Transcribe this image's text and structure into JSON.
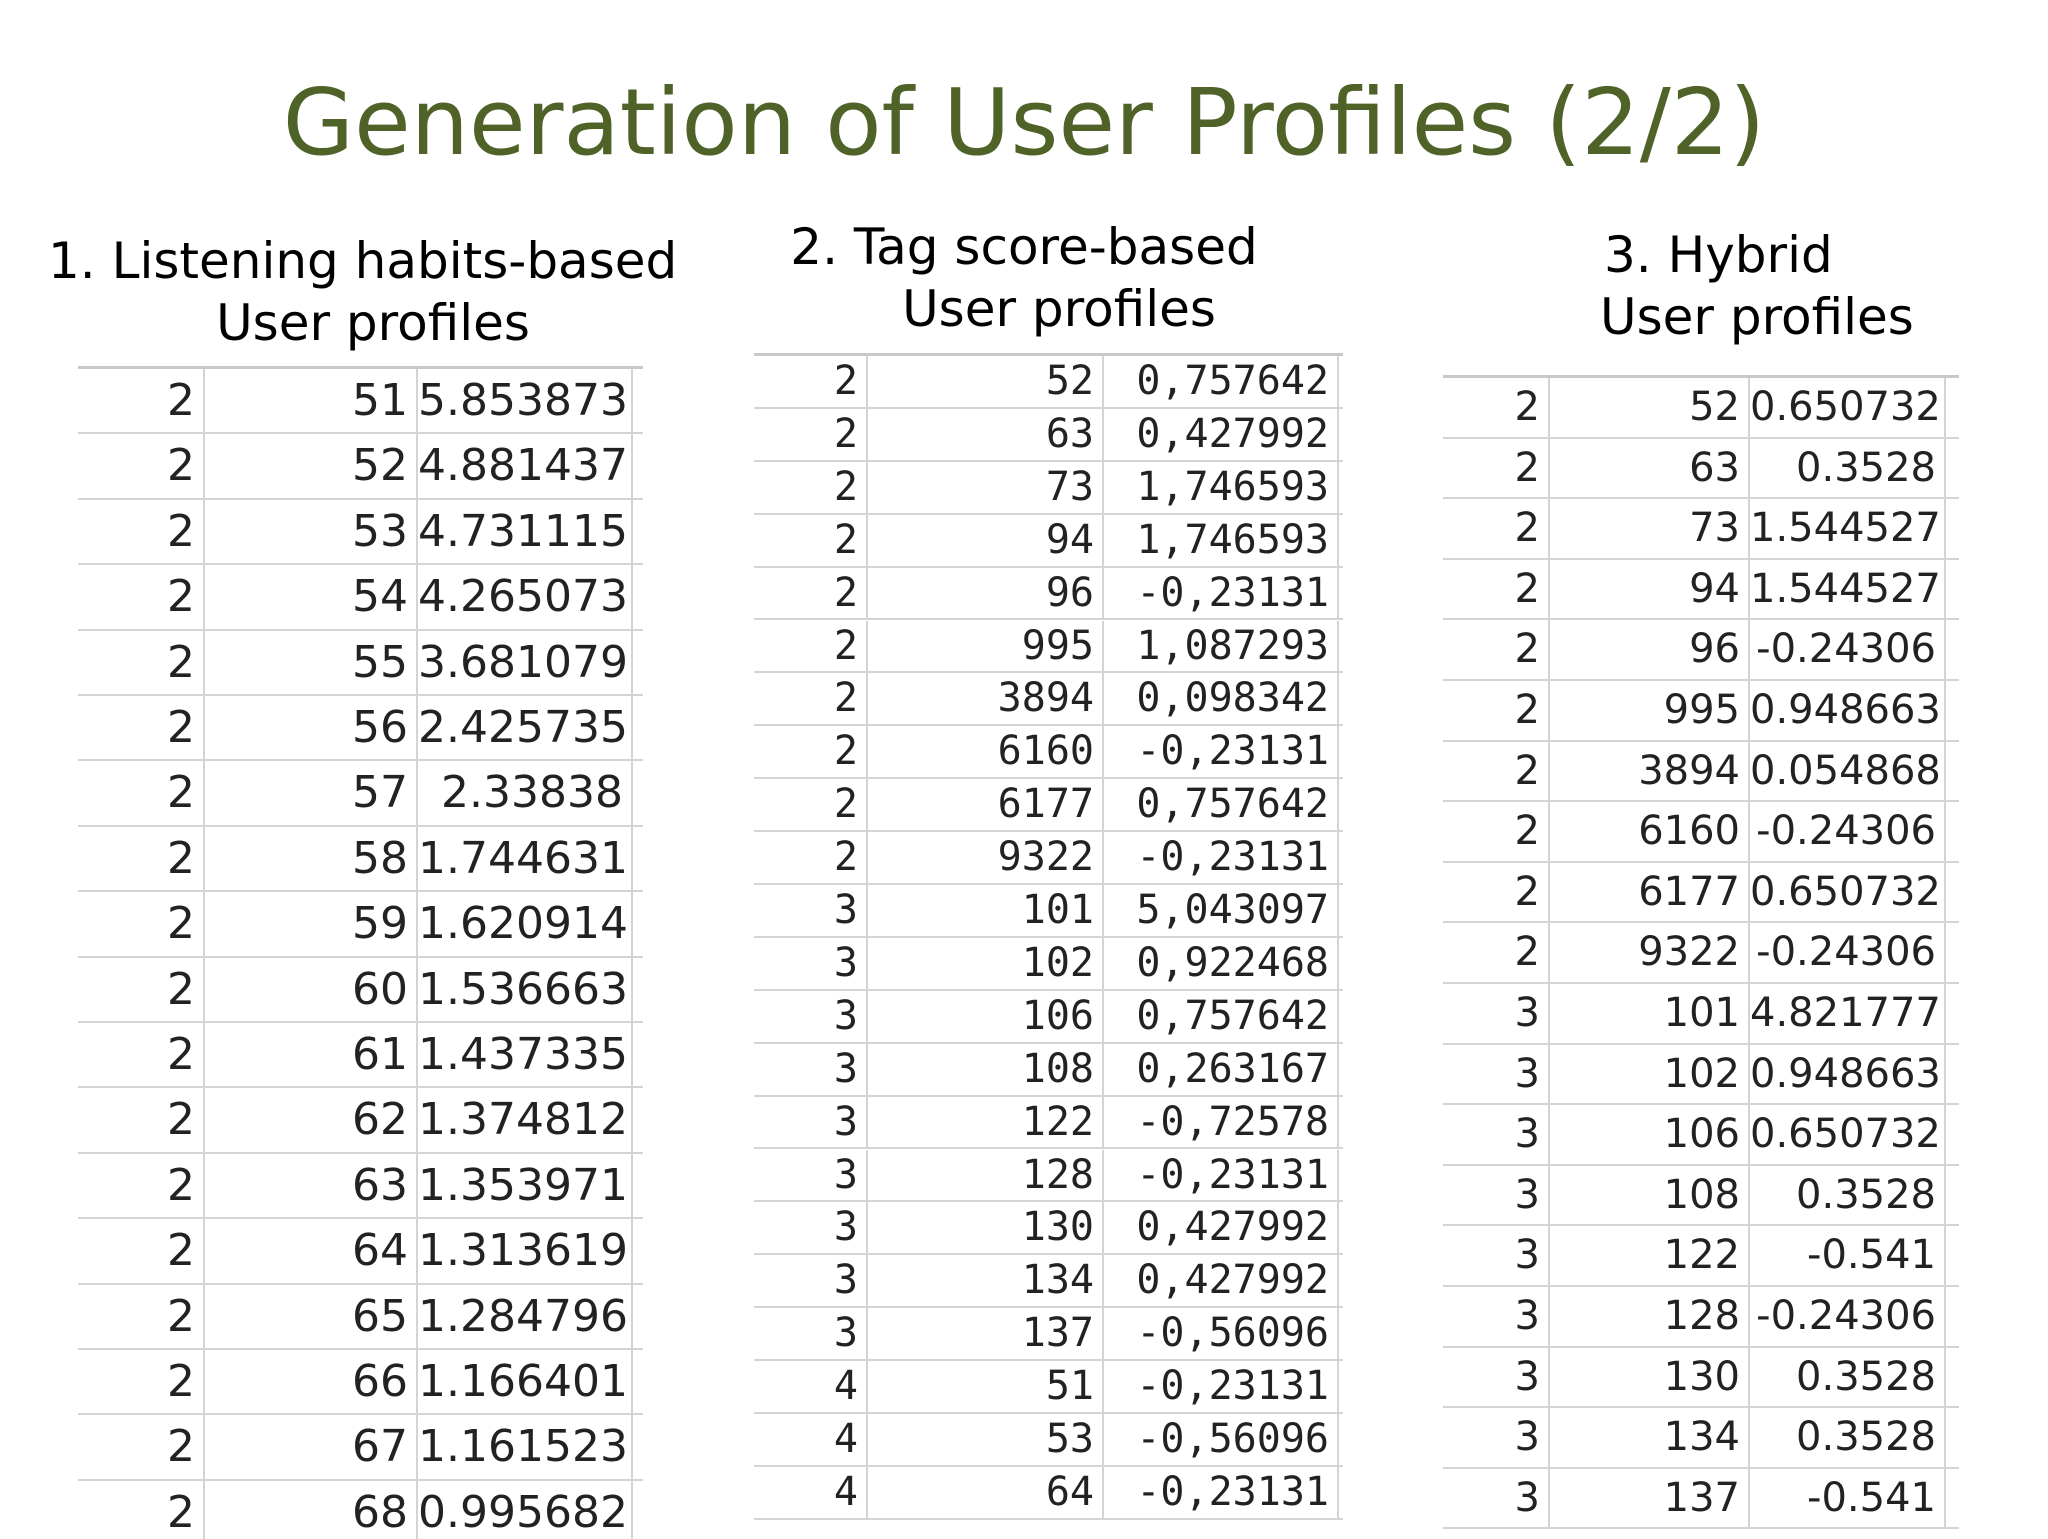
{
  "title": "Generation of User Profiles (2/2)",
  "panels": [
    {
      "heading": [
        "1. Listening habits-based",
        "User profiles"
      ],
      "rows": [
        [
          "2",
          "51",
          "5.853873"
        ],
        [
          "2",
          "52",
          "4.881437"
        ],
        [
          "2",
          "53",
          "4.731115"
        ],
        [
          "2",
          "54",
          "4.265073"
        ],
        [
          "2",
          "55",
          "3.681079"
        ],
        [
          "2",
          "56",
          "2.425735"
        ],
        [
          "2",
          "57",
          "2.33838"
        ],
        [
          "2",
          "58",
          "1.744631"
        ],
        [
          "2",
          "59",
          "1.620914"
        ],
        [
          "2",
          "60",
          "1.536663"
        ],
        [
          "2",
          "61",
          "1.437335"
        ],
        [
          "2",
          "62",
          "1.374812"
        ],
        [
          "2",
          "63",
          "1.353971"
        ],
        [
          "2",
          "64",
          "1.313619"
        ],
        [
          "2",
          "65",
          "1.284796"
        ],
        [
          "2",
          "66",
          "1.166401"
        ],
        [
          "2",
          "67",
          "1.161523"
        ],
        [
          "2",
          "68",
          "0.995682"
        ]
      ]
    },
    {
      "heading": [
        "2. Tag score-based",
        "User profiles"
      ],
      "rows": [
        [
          "2",
          "52",
          "0,757642"
        ],
        [
          "2",
          "63",
          "0,427992"
        ],
        [
          "2",
          "73",
          "1,746593"
        ],
        [
          "2",
          "94",
          "1,746593"
        ],
        [
          "2",
          "96",
          "-0,23131"
        ],
        [
          "2",
          "995",
          "1,087293"
        ],
        [
          "2",
          "3894",
          "0,098342"
        ],
        [
          "2",
          "6160",
          "-0,23131"
        ],
        [
          "2",
          "6177",
          "0,757642"
        ],
        [
          "2",
          "9322",
          "-0,23131"
        ],
        [
          "3",
          "101",
          "5,043097"
        ],
        [
          "3",
          "102",
          "0,922468"
        ],
        [
          "3",
          "106",
          "0,757642"
        ],
        [
          "3",
          "108",
          "0,263167"
        ],
        [
          "3",
          "122",
          "-0,72578"
        ],
        [
          "3",
          "128",
          "-0,23131"
        ],
        [
          "3",
          "130",
          "0,427992"
        ],
        [
          "3",
          "134",
          "0,427992"
        ],
        [
          "3",
          "137",
          "-0,56096"
        ],
        [
          "4",
          "51",
          "-0,23131"
        ],
        [
          "4",
          "53",
          "-0,56096"
        ],
        [
          "4",
          "64",
          "-0,23131"
        ]
      ]
    },
    {
      "heading": [
        "3. Hybrid",
        "User profiles"
      ],
      "rows": [
        [
          "2",
          "52",
          "0.650732"
        ],
        [
          "2",
          "63",
          "0.3528"
        ],
        [
          "2",
          "73",
          "1.544527"
        ],
        [
          "2",
          "94",
          "1.544527"
        ],
        [
          "2",
          "96",
          "-0.24306"
        ],
        [
          "2",
          "995",
          "0.948663"
        ],
        [
          "2",
          "3894",
          "0.054868"
        ],
        [
          "2",
          "6160",
          "-0.24306"
        ],
        [
          "2",
          "6177",
          "0.650732"
        ],
        [
          "2",
          "9322",
          "-0.24306"
        ],
        [
          "3",
          "101",
          "4.821777"
        ],
        [
          "3",
          "102",
          "0.948663"
        ],
        [
          "3",
          "106",
          "0.650732"
        ],
        [
          "3",
          "108",
          "0.3528"
        ],
        [
          "3",
          "122",
          "-0.541"
        ],
        [
          "3",
          "128",
          "-0.24306"
        ],
        [
          "3",
          "130",
          "0.3528"
        ],
        [
          "3",
          "134",
          "0.3528"
        ],
        [
          "3",
          "137",
          "-0.541"
        ]
      ]
    }
  ]
}
